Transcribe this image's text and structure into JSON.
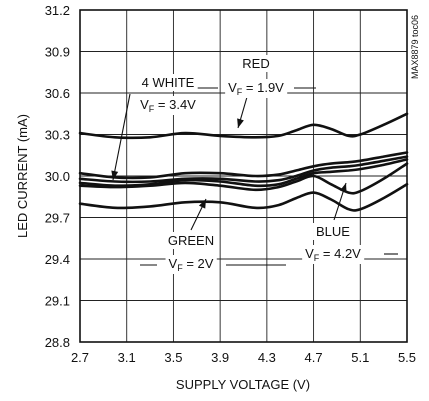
{
  "chart_data": {
    "type": "line",
    "title": "",
    "xlabel": "SUPPLY VOLTAGE (V)",
    "ylabel": "LED CURRENT (mA)",
    "part_code": "MAX8879 toc06",
    "xlim": [
      2.7,
      5.5
    ],
    "ylim": [
      28.8,
      31.2
    ],
    "xticks": [
      "2.7",
      "3.1",
      "3.5",
      "3.9",
      "4.3",
      "4.7",
      "5.1",
      "5.5"
    ],
    "yticks": [
      "28.8",
      "29.1",
      "29.4",
      "29.7",
      "30.0",
      "30.3",
      "30.6",
      "30.9",
      "31.2"
    ],
    "grid": true,
    "x": [
      2.7,
      3.0,
      3.3,
      3.6,
      3.9,
      4.2,
      4.4,
      4.55,
      4.7,
      4.85,
      5.0,
      5.1,
      5.3,
      5.5
    ],
    "series": [
      {
        "values": [
          30.31,
          30.28,
          30.28,
          30.31,
          30.29,
          30.28,
          30.29,
          30.33,
          30.37,
          30.34,
          30.29,
          30.3,
          30.37,
          30.45
        ]
      },
      {
        "values": [
          30.02,
          29.99,
          29.99,
          30.02,
          30.02,
          30.0,
          30.01,
          30.04,
          30.07,
          30.09,
          30.1,
          30.11,
          30.14,
          30.17
        ]
      },
      {
        "values": [
          29.98,
          29.96,
          29.96,
          29.98,
          29.98,
          29.96,
          29.97,
          30.0,
          30.04,
          30.06,
          30.07,
          30.08,
          30.11,
          30.14
        ]
      },
      {
        "values": [
          29.95,
          29.93,
          29.94,
          29.97,
          29.96,
          29.93,
          29.94,
          29.98,
          30.02,
          30.03,
          30.04,
          30.05,
          30.08,
          30.12
        ]
      },
      {
        "values": [
          29.93,
          29.92,
          29.93,
          29.95,
          29.93,
          29.9,
          29.92,
          29.96,
          30.0,
          29.94,
          29.88,
          29.89,
          29.98,
          30.09
        ]
      },
      {
        "values": [
          29.8,
          29.77,
          29.78,
          29.81,
          29.81,
          29.77,
          29.79,
          29.84,
          29.88,
          29.83,
          29.76,
          29.76,
          29.84,
          29.94
        ]
      }
    ],
    "annotations": [
      {
        "name": "red",
        "label": "RED",
        "vf_label": "V",
        "vf_sub": "F",
        "vf_value": " = 1.9V"
      },
      {
        "name": "white",
        "label": "4 WHITE",
        "vf_label": "V",
        "vf_sub": "F",
        "vf_value": " = 3.4V"
      },
      {
        "name": "green",
        "label": "GREEN",
        "vf_label": "V",
        "vf_sub": "F",
        "vf_value": " = 2V"
      },
      {
        "name": "blue",
        "label": "BLUE",
        "vf_label": "V",
        "vf_sub": "F",
        "vf_value": " = 4.2V"
      }
    ]
  }
}
